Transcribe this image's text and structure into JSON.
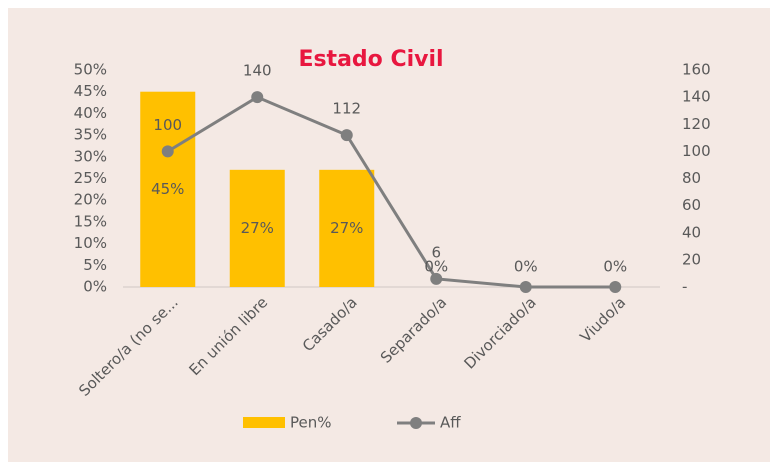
{
  "chart_data": {
    "type": "bar_line",
    "title": "Estado Civil",
    "categories": [
      "Soltero/a (no se...",
      "En unión libre",
      "Casado/a",
      "Separado/a",
      "Divorciado/a",
      "Viudo/a"
    ],
    "series": [
      {
        "name": "Pen%",
        "color": "#ffc000",
        "type": "bar",
        "values": [
          45,
          27,
          27,
          0,
          0,
          0
        ],
        "value_labels": [
          "45%",
          "27%",
          "27%",
          "0%",
          "0%",
          "0%"
        ]
      },
      {
        "name": "Aff",
        "color": "#7f7f7f",
        "type": "line",
        "axis": "y2",
        "values": [
          100,
          140,
          112,
          6,
          0,
          0
        ],
        "value_labels": [
          "100",
          "140",
          "112",
          "6",
          null,
          null
        ]
      }
    ],
    "ylim": [
      0,
      50
    ],
    "yticks": [
      {
        "value": 0,
        "label": "0%"
      },
      {
        "value": 5,
        "label": "5%"
      },
      {
        "value": 10,
        "label": "10%"
      },
      {
        "value": 15,
        "label": "15%"
      },
      {
        "value": 20,
        "label": "20%"
      },
      {
        "value": 25,
        "label": "25%"
      },
      {
        "value": 30,
        "label": "30%"
      },
      {
        "value": 35,
        "label": "35%"
      },
      {
        "value": 40,
        "label": "40%"
      },
      {
        "value": 45,
        "label": "45%"
      },
      {
        "value": 50,
        "label": "50%"
      }
    ],
    "y2lim": [
      0,
      160
    ],
    "y2ticks": [
      {
        "value": 0,
        "label": "-"
      },
      20,
      40,
      60,
      80,
      100,
      120,
      140,
      160
    ],
    "legend": "bottom"
  }
}
